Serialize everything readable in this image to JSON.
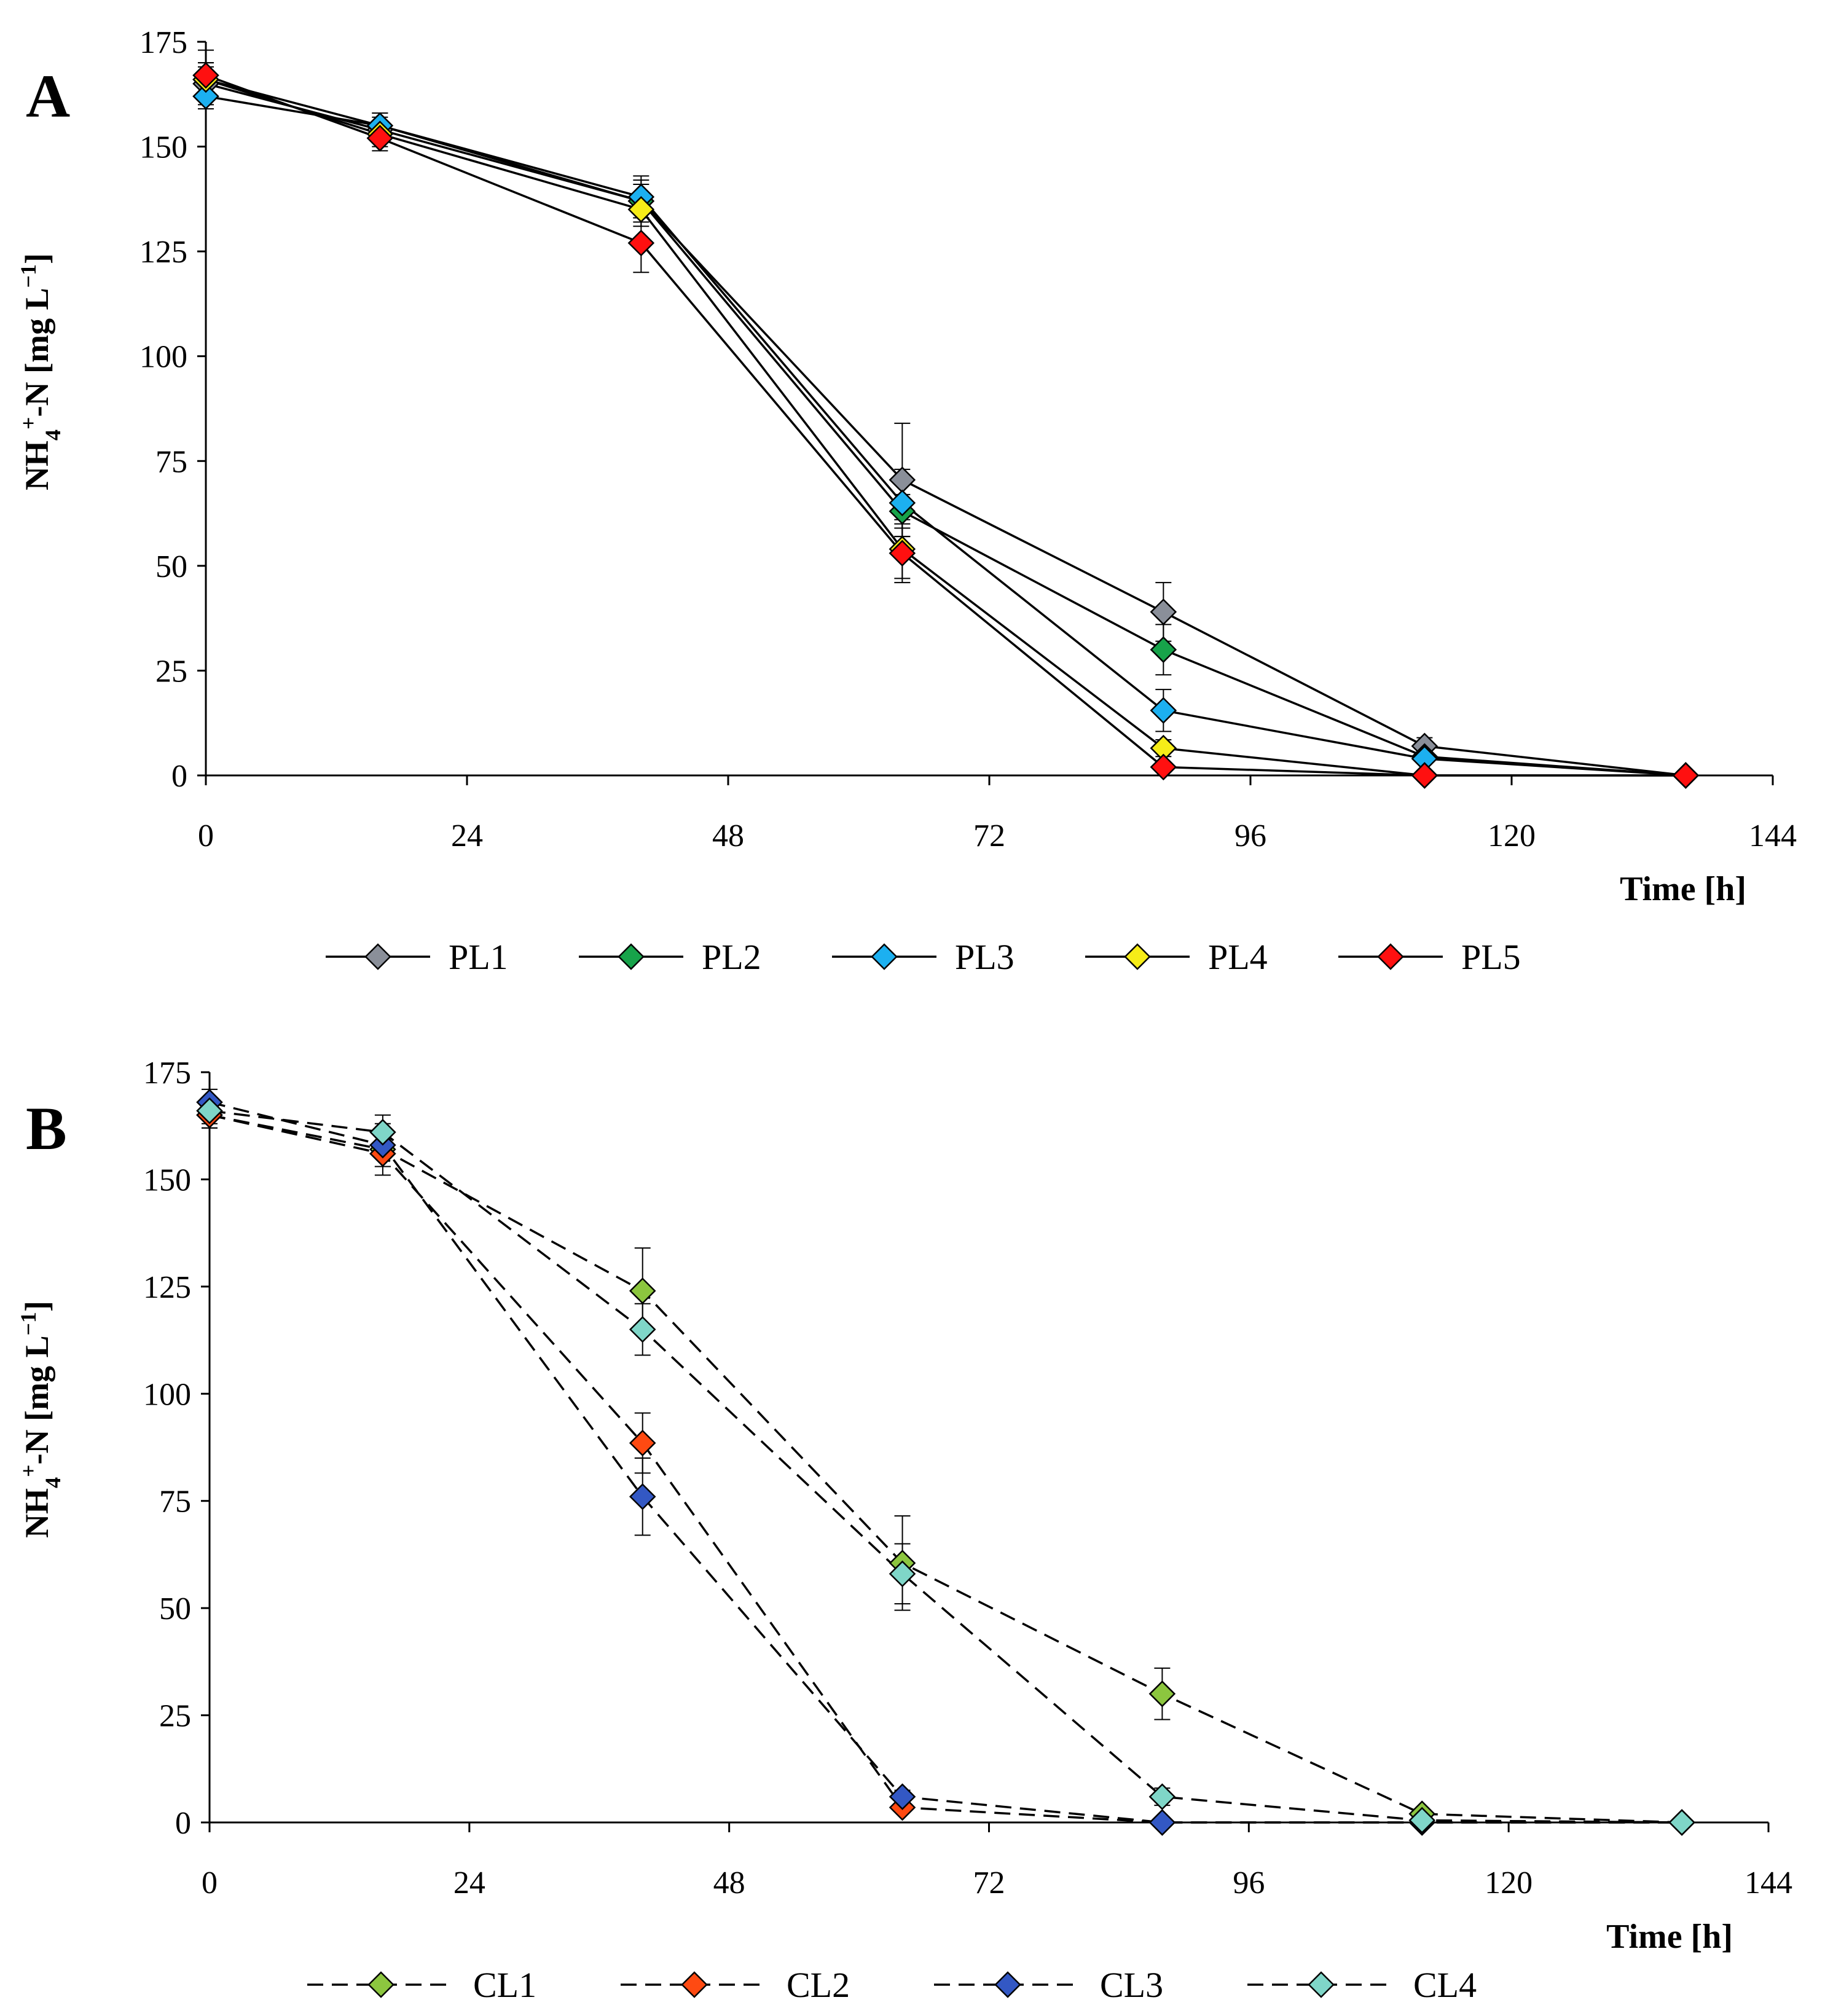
{
  "chart_data": [
    {
      "type": "line",
      "panel_label": "A",
      "title": "",
      "xlabel": "Time [h]",
      "ylabel": {
        "base": "NH",
        "sub": "4",
        "sup": "+",
        "rest": "-N [mg L",
        "exp": "−1",
        "close": "]"
      },
      "xlim": [
        0,
        144
      ],
      "ylim": [
        0,
        175
      ],
      "xticks": [
        "0",
        "24",
        "48",
        "72",
        "96",
        "120",
        "144"
      ],
      "yticks": [
        "0",
        "25",
        "50",
        "75",
        "100",
        "125",
        "150",
        "175"
      ],
      "line_style": "solid",
      "x": [
        0,
        16,
        40,
        64,
        88,
        112,
        136
      ],
      "series": [
        {
          "name": "PL1",
          "color": "#8a8f99",
          "values": [
            165,
            154,
            137,
            70.5,
            39,
            7,
            0
          ],
          "err": [
            5,
            3,
            5,
            13.5,
            7,
            2,
            0
          ]
        },
        {
          "name": "PL2",
          "color": "#17a34a",
          "values": [
            166,
            155,
            137,
            63,
            30,
            4.5,
            0
          ],
          "err": [
            4,
            3,
            4,
            4,
            6,
            1.5,
            0
          ]
        },
        {
          "name": "PL3",
          "color": "#1cb0f0",
          "values": [
            162,
            155,
            138,
            65,
            15.5,
            4,
            0
          ],
          "err": [
            3,
            3,
            5,
            8,
            5,
            1,
            0
          ]
        },
        {
          "name": "PL4",
          "color": "#f6ec18",
          "values": [
            166,
            153,
            135,
            54,
            6.5,
            0,
            0
          ],
          "err": [
            3,
            3,
            4,
            7,
            2,
            0,
            0
          ]
        },
        {
          "name": "PL5",
          "color": "#ff1010",
          "values": [
            167,
            152,
            127,
            53,
            2,
            0,
            0
          ],
          "err": [
            6,
            3,
            7,
            7,
            1,
            0,
            0
          ]
        }
      ]
    },
    {
      "type": "line",
      "panel_label": "B",
      "title": "",
      "xlabel": "Time [h]",
      "ylabel": {
        "base": "NH",
        "sub": "4",
        "sup": "+",
        "rest": "-N [mg L",
        "exp": "−1",
        "close": "]"
      },
      "xlim": [
        0,
        144
      ],
      "ylim": [
        0,
        175
      ],
      "xticks": [
        "0",
        "24",
        "48",
        "72",
        "96",
        "120",
        "144"
      ],
      "yticks": [
        "0",
        "25",
        "50",
        "75",
        "100",
        "125",
        "150",
        "175"
      ],
      "line_style": "dashed",
      "x": [
        0,
        16,
        40,
        64,
        88,
        112,
        136
      ],
      "series": [
        {
          "name": "CL1",
          "color": "#8cc63f",
          "values": [
            165,
            157,
            124,
            60.5,
            30,
            2,
            0
          ],
          "err": [
            3,
            4,
            10,
            11,
            6,
            1,
            0
          ]
        },
        {
          "name": "CL2",
          "color": "#ff4a12",
          "values": [
            165,
            156,
            88.5,
            3.5,
            0,
            0,
            0
          ],
          "err": [
            3,
            5,
            7,
            1,
            0,
            0,
            0
          ]
        },
        {
          "name": "CL3",
          "color": "#3358c4",
          "values": [
            168,
            158,
            76,
            6,
            0,
            0,
            0
          ],
          "err": [
            3,
            5,
            9,
            1.5,
            0,
            0,
            0
          ]
        },
        {
          "name": "CL4",
          "color": "#7fd6c8",
          "values": [
            166,
            161,
            115,
            58,
            6,
            0.5,
            0
          ],
          "err": [
            3,
            4,
            6,
            7,
            2,
            0.5,
            0
          ]
        }
      ]
    }
  ]
}
